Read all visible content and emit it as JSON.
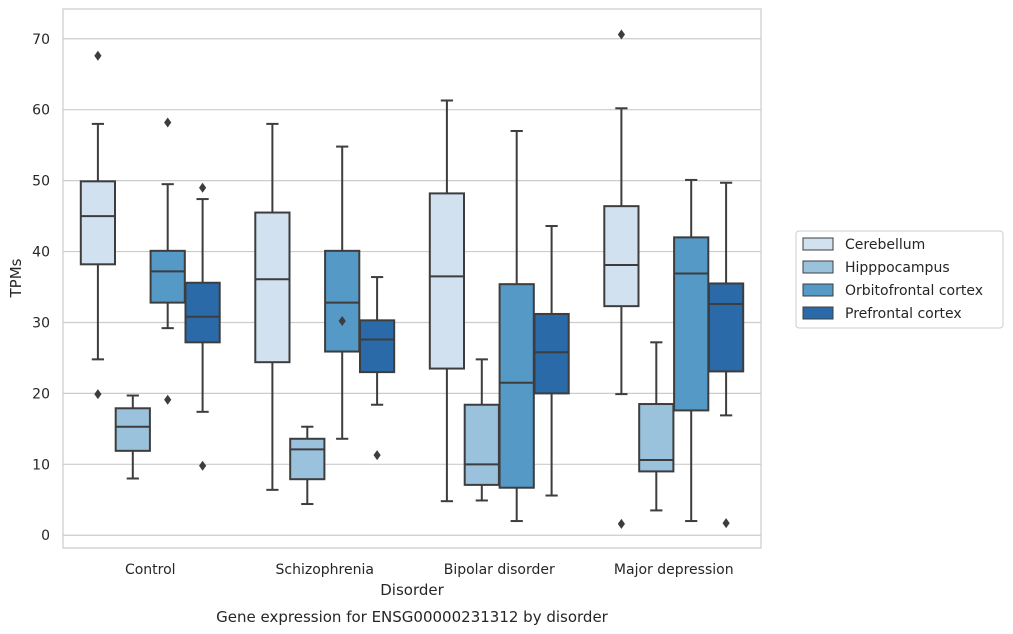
{
  "chart_data": {
    "type": "box",
    "title": "Gene expression for ENSG00000231312 by disorder",
    "xlabel": "Disorder",
    "ylabel": "TPMs",
    "ylim": [
      -1.8,
      74.2
    ],
    "yticks": [
      0,
      10,
      20,
      30,
      40,
      50,
      60,
      70
    ],
    "grid": true,
    "legend_position": "right",
    "categories": [
      "Control",
      "Schizophrenia",
      "Bipolar disorder",
      "Major depression"
    ],
    "series": [
      {
        "name": "Cerebellum",
        "color": "#d1e1f0",
        "boxes": [
          {
            "whislo": 24.8,
            "q1": 38.2,
            "med": 45.0,
            "q3": 49.9,
            "whishi": 58.0,
            "fliers": [
              67.6,
              19.9
            ]
          },
          {
            "whislo": 6.4,
            "q1": 24.4,
            "med": 36.1,
            "q3": 45.5,
            "whishi": 58.0,
            "fliers": []
          },
          {
            "whislo": 4.8,
            "q1": 23.5,
            "med": 36.5,
            "q3": 48.2,
            "whishi": 61.3,
            "fliers": []
          },
          {
            "whislo": 19.9,
            "q1": 32.3,
            "med": 38.1,
            "q3": 46.4,
            "whishi": 60.2,
            "fliers": [
              70.6,
              1.6
            ]
          }
        ]
      },
      {
        "name": "Hipppocampus",
        "color": "#9ac2dd",
        "boxes": [
          {
            "whislo": 8.0,
            "q1": 11.9,
            "med": 15.3,
            "q3": 17.9,
            "whishi": 19.7,
            "fliers": []
          },
          {
            "whislo": 4.4,
            "q1": 7.9,
            "med": 12.1,
            "q3": 13.6,
            "whishi": 15.3,
            "fliers": []
          },
          {
            "whislo": 4.9,
            "q1": 7.1,
            "med": 10.0,
            "q3": 18.4,
            "whishi": 24.8,
            "fliers": []
          },
          {
            "whislo": 3.5,
            "q1": 9.0,
            "med": 10.6,
            "q3": 18.5,
            "whishi": 27.2,
            "fliers": []
          }
        ]
      },
      {
        "name": "Orbitofrontal cortex",
        "color": "#5599c7",
        "boxes": [
          {
            "whislo": 29.2,
            "q1": 32.8,
            "med": 37.2,
            "q3": 40.1,
            "whishi": 49.5,
            "fliers": [
              58.2,
              19.1
            ]
          },
          {
            "whislo": 13.6,
            "q1": 25.9,
            "med": 32.8,
            "q3": 40.1,
            "whishi": 54.8,
            "fliers": [
              30.2
            ]
          },
          {
            "whislo": 2.0,
            "q1": 6.7,
            "med": 21.5,
            "q3": 35.4,
            "whishi": 57.0,
            "fliers": []
          },
          {
            "whislo": 2.0,
            "q1": 17.6,
            "med": 36.9,
            "q3": 42.0,
            "whishi": 50.1,
            "fliers": []
          }
        ]
      },
      {
        "name": "Prefrontal cortex",
        "color": "#2a6aa9",
        "boxes": [
          {
            "whislo": 17.4,
            "q1": 27.2,
            "med": 30.8,
            "q3": 35.6,
            "whishi": 47.4,
            "fliers": [
              49.0,
              9.8
            ]
          },
          {
            "whislo": 18.4,
            "q1": 23.0,
            "med": 27.6,
            "q3": 30.3,
            "whishi": 36.4,
            "fliers": [
              11.3
            ]
          },
          {
            "whislo": 5.6,
            "q1": 20.0,
            "med": 25.8,
            "q3": 31.2,
            "whishi": 43.6,
            "fliers": []
          },
          {
            "whislo": 16.9,
            "q1": 23.1,
            "med": 32.6,
            "q3": 35.5,
            "whishi": 49.7,
            "fliers": [
              1.7
            ]
          }
        ]
      }
    ]
  }
}
